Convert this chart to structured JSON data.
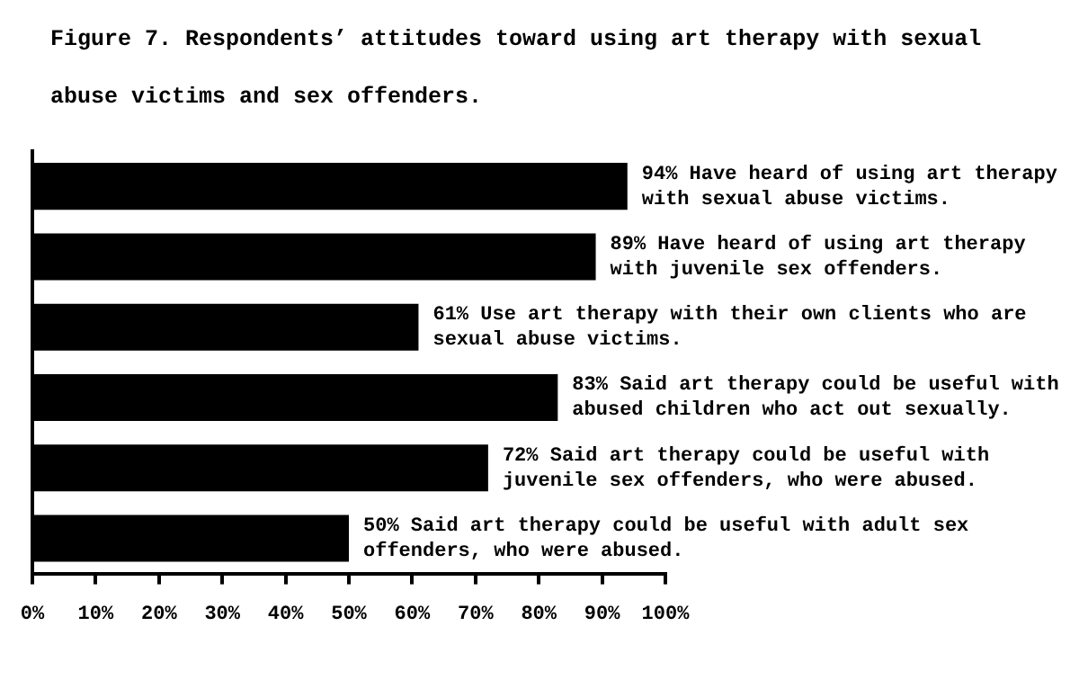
{
  "chart_data": {
    "type": "bar",
    "orientation": "horizontal",
    "title": "Figure 7. Respondents’ attitudes toward using art therapy with sexual abuse victims and sex offenders.",
    "categories": [
      null,
      null,
      null,
      null,
      null,
      null
    ],
    "values": [
      94,
      89,
      61,
      83,
      72,
      50
    ],
    "color": "#000000",
    "value_labels": [
      "94% Have heard of using art therapy with sexual abuse victims.",
      "89% Have heard of using art therapy with juvenile sex offenders.",
      "61% Use art therapy with their own clients who are sexual abuse victims.",
      "83% Said art therapy could be useful with abused children who act out sexually.",
      "72% Said art therapy could be useful with juvenile sex offenders, who were abused.",
      "50% Said art therapy could be useful with adult sex offenders, who were abused."
    ],
    "xlim": [
      0,
      100
    ],
    "xticks": [
      {
        "value": 0,
        "label": "0%"
      },
      {
        "value": 10,
        "label": "10%"
      },
      {
        "value": 20,
        "label": "20%"
      },
      {
        "value": 30,
        "label": "30%"
      },
      {
        "value": 40,
        "label": "40%"
      },
      {
        "value": 50,
        "label": "50%"
      },
      {
        "value": 60,
        "label": "60%"
      },
      {
        "value": 70,
        "label": "70%"
      },
      {
        "value": 80,
        "label": "80%"
      },
      {
        "value": 90,
        "label": "90%"
      },
      {
        "value": 100,
        "label": "100%"
      }
    ],
    "tick_labels": "x",
    "grid": false,
    "legend": false
  }
}
